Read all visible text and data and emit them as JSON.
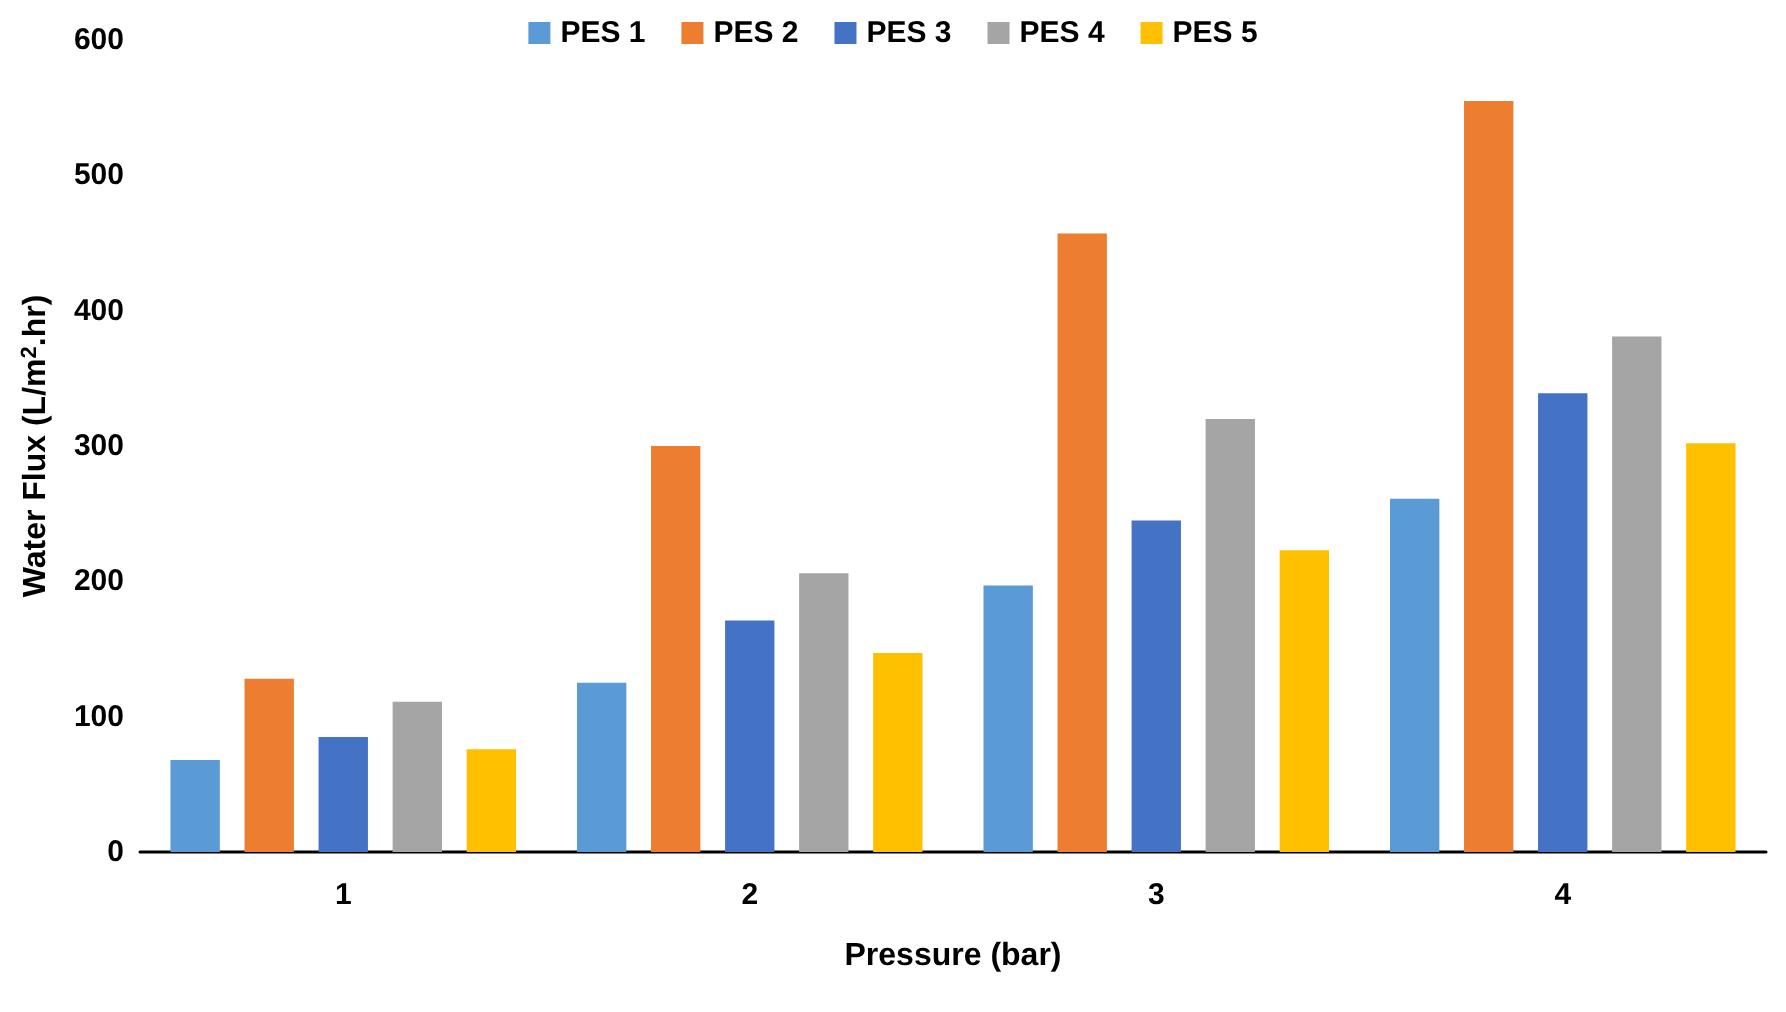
{
  "chart_data": {
    "type": "bar",
    "xlabel": "Pressure (bar)",
    "ylabel": "Water Flux (L/m$^{2}$.hr)",
    "categories": [
      "1",
      "2",
      "3",
      "4"
    ],
    "series": [
      {
        "name": "PES 1",
        "color": "#5b9bd5",
        "values": [
          68,
          125,
          197,
          261
        ]
      },
      {
        "name": "PES 2",
        "color": "#ed7d31",
        "values": [
          128,
          300,
          457,
          555
        ]
      },
      {
        "name": "PES 3",
        "color": "#4472c4",
        "values": [
          85,
          171,
          245,
          339
        ]
      },
      {
        "name": "PES 4",
        "color": "#a5a5a5",
        "values": [
          111,
          206,
          320,
          381
        ]
      },
      {
        "name": "PES 5",
        "color": "#ffc000",
        "values": [
          76,
          147,
          223,
          302
        ]
      }
    ],
    "ylim": [
      0,
      600
    ],
    "yticks": [
      0,
      100,
      200,
      300,
      400,
      500,
      600
    ],
    "grid": false,
    "legend": "top"
  }
}
